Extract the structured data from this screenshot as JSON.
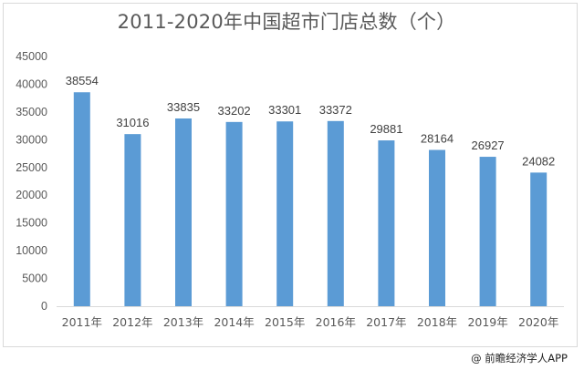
{
  "chart_data": {
    "type": "bar",
    "title": "2011-2020年中国超市门店总数（个）",
    "categories": [
      "2011年",
      "2012年",
      "2013年",
      "2014年",
      "2015年",
      "2016年",
      "2017年",
      "2018年",
      "2019年",
      "2020年"
    ],
    "values": [
      38554,
      31016,
      33835,
      33202,
      33301,
      33372,
      29881,
      28164,
      26927,
      24082
    ],
    "ylim": [
      0,
      45000
    ],
    "yticks": [
      "0",
      "5000",
      "10000",
      "15000",
      "20000",
      "25000",
      "30000",
      "35000",
      "40000",
      "45000"
    ],
    "xlabel": "",
    "ylabel": "",
    "grid": false,
    "bar_color": "#5b9bd5",
    "data_labels": true
  },
  "source": "@ 前瞻经济学人APP"
}
